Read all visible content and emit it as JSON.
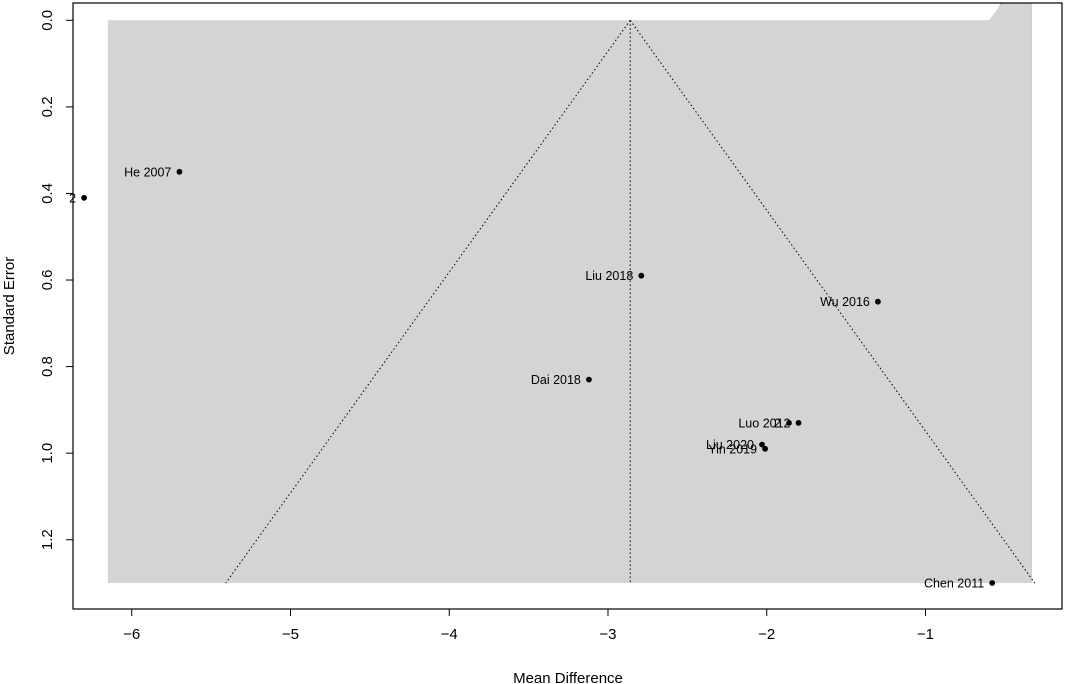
{
  "chart_data": {
    "type": "scatter",
    "subtype": "contour-enhanced funnel plot",
    "xlabel": "Mean Difference",
    "ylabel": "Standard Error",
    "xlim": [
      -6.37,
      -0.14
    ],
    "ylim": [
      1.36,
      -0.04
    ],
    "y_reversed": true,
    "x_ticks": [
      -6,
      -5,
      -4,
      -3,
      -2,
      -1
    ],
    "x_tick_labels": [
      "−6",
      "−5",
      "−4",
      "−3",
      "−2",
      "−1"
    ],
    "y_ticks": [
      0.0,
      0.2,
      0.4,
      0.6,
      0.8,
      1.0,
      1.2
    ],
    "y_tick_labels": [
      "0.0",
      "0.2",
      "0.4",
      "0.6",
      "0.8",
      "1.0",
      "1.2"
    ],
    "pooled_estimate": -2.86,
    "se_max": 1.3,
    "contour_region_x": [
      -6.15,
      -0.33
    ],
    "contour_levels_z": [
      1.645,
      1.96,
      2.576
    ],
    "colors": {
      "outer_region": "#d4d4d4",
      "band_p10": "#bfbfbf",
      "band_p05": "#a9a9a9",
      "plot_border": "#000000",
      "points": "#000000",
      "funnel_lines": "#000000"
    },
    "points": [
      {
        "label": "He 2007",
        "x": -5.7,
        "y": 0.35
      },
      {
        "label": "2",
        "x": -6.3,
        "y": 0.41
      },
      {
        "label": "Liu 2018",
        "x": -2.79,
        "y": 0.59
      },
      {
        "label": "Wu 2016",
        "x": -1.3,
        "y": 0.65
      },
      {
        "label": "Dai 2018",
        "x": -3.12,
        "y": 0.83
      },
      {
        "label": "Luo 2012",
        "x": -1.8,
        "y": 0.93
      },
      {
        "label": "2",
        "x": -1.86,
        "y": 0.93
      },
      {
        "label": "Liu 2020",
        "x": -2.03,
        "y": 0.98
      },
      {
        "label": "Yin 2019",
        "x": -2.01,
        "y": 0.99
      },
      {
        "label": "Chen 2011",
        "x": -0.58,
        "y": 1.3
      }
    ]
  }
}
